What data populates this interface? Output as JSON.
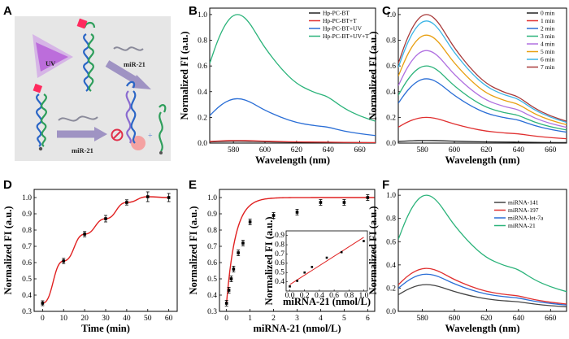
{
  "panels": {
    "A": {
      "label": "A",
      "texts": {
        "uv": "UV",
        "mir_top": "miR-21",
        "mir_bottom": "miR-21"
      },
      "colors": {
        "background": "#e6e6e6",
        "uv": "#b14fd6",
        "arrow": "#9f93c3",
        "lock": "#ff2a5e",
        "strand_green": "#2e9e5b",
        "strand_blue": "#2b66c6",
        "strand_purple": "#8a6bd0"
      }
    },
    "B": {
      "label": "B"
    },
    "C": {
      "label": "C"
    },
    "D": {
      "label": "D"
    },
    "E": {
      "label": "E"
    },
    "F": {
      "label": "F"
    }
  },
  "chart_data": [
    {
      "id": "B",
      "type": "line",
      "xlabel": "Wavelength (nm)",
      "ylabel": "Normalized FI (a.u.)",
      "xlim": [
        565,
        670
      ],
      "ylim": [
        0.0,
        1.05
      ],
      "xticks": [
        580,
        600,
        620,
        640,
        660
      ],
      "yticks": [
        0.0,
        0.2,
        0.4,
        0.6,
        0.8,
        1.0
      ],
      "ytick_labels": [
        "0.0",
        "0.2",
        "0.4",
        "0.6",
        "0.8",
        "1.0"
      ],
      "legend": "top-right",
      "x": [
        565,
        570,
        575,
        580,
        585,
        590,
        595,
        600,
        610,
        620,
        630,
        635,
        640,
        650,
        660,
        670
      ],
      "shape": [
        0.62,
        0.8,
        0.93,
        1.0,
        1.0,
        0.94,
        0.84,
        0.74,
        0.58,
        0.46,
        0.4,
        0.38,
        0.36,
        0.27,
        0.21,
        0.17
      ],
      "series": [
        {
          "name": "Hp-PC-BT",
          "color": "#222222",
          "peak": 0.015
        },
        {
          "name": "Hp-PC-BT+T",
          "color": "#e03030",
          "peak": 0.02
        },
        {
          "name": "Hp-PC-BT+UV",
          "color": "#2a6ed6",
          "peak": 0.345
        },
        {
          "name": "Hp-PC-BT+UV+T",
          "color": "#2bb37a",
          "peak": 1.0
        }
      ]
    },
    {
      "id": "C",
      "type": "line",
      "xlabel": "Wavelength (nm)",
      "ylabel": "Normalized FI (a.u.)",
      "xlim": [
        565,
        670
      ],
      "ylim": [
        0.0,
        1.05
      ],
      "xticks": [
        580,
        600,
        620,
        640,
        660
      ],
      "yticks": [
        0.0,
        0.2,
        0.4,
        0.6,
        0.8,
        1.0
      ],
      "ytick_labels": [
        "0.0",
        "0.2",
        "0.4",
        "0.6",
        "0.8",
        "1.0"
      ],
      "legend": "top-right",
      "x": [
        565,
        570,
        575,
        580,
        585,
        590,
        595,
        600,
        610,
        620,
        630,
        635,
        640,
        650,
        660,
        670
      ],
      "shape": [
        0.62,
        0.8,
        0.93,
        1.0,
        1.0,
        0.94,
        0.84,
        0.74,
        0.58,
        0.46,
        0.4,
        0.38,
        0.36,
        0.27,
        0.21,
        0.17
      ],
      "series": [
        {
          "name": "0 min",
          "color": "#222222",
          "peak": 0.02
        },
        {
          "name": "1 min",
          "color": "#e03030",
          "peak": 0.2
        },
        {
          "name": "2 min",
          "color": "#2a6ed6",
          "peak": 0.5
        },
        {
          "name": "3 min",
          "color": "#2bb37a",
          "peak": 0.6
        },
        {
          "name": "4 min",
          "color": "#b070e0",
          "peak": 0.72
        },
        {
          "name": "5 min",
          "color": "#e8a012",
          "peak": 0.84
        },
        {
          "name": "6 min",
          "color": "#3ab4e6",
          "peak": 0.95
        },
        {
          "name": "7 min",
          "color": "#a83a3a",
          "peak": 1.0
        }
      ]
    },
    {
      "id": "D",
      "type": "line",
      "xlabel": "Time (min)",
      "ylabel": "Normalized FI (a.u.)",
      "xlim": [
        -4,
        64
      ],
      "ylim": [
        0.3,
        1.05
      ],
      "xticks": [
        0,
        10,
        20,
        30,
        40,
        50,
        60
      ],
      "yticks": [
        0.3,
        0.4,
        0.5,
        0.6,
        0.7,
        0.8,
        0.9,
        1.0
      ],
      "ytick_labels": [
        "0.3",
        "0.4",
        "0.5",
        "0.6",
        "0.7",
        "0.8",
        "0.9",
        "1.0"
      ],
      "line_color": "#e02020",
      "points": [
        {
          "x": 0,
          "y": 0.35,
          "err": 0.005
        },
        {
          "x": 10,
          "y": 0.61,
          "err": 0.006
        },
        {
          "x": 20,
          "y": 0.775,
          "err": 0.006
        },
        {
          "x": 30,
          "y": 0.87,
          "err": 0.01
        },
        {
          "x": 40,
          "y": 0.97,
          "err": 0.006
        },
        {
          "x": 50,
          "y": 1.005,
          "err": 0.02
        },
        {
          "x": 60,
          "y": 1.0,
          "err": 0.015
        }
      ]
    },
    {
      "id": "E",
      "type": "scatter",
      "xlabel": "miRNA-21 (nmol/L)",
      "ylabel": "Normalized FI (a.u.)",
      "xlim": [
        -0.3,
        6.3
      ],
      "ylim": [
        0.3,
        1.05
      ],
      "xticks": [
        0,
        1,
        2,
        3,
        4,
        5,
        6
      ],
      "yticks": [
        0.3,
        0.4,
        0.5,
        0.6,
        0.7,
        0.8,
        0.9,
        1.0
      ],
      "ytick_labels": [
        "0.3",
        "0.4",
        "0.5",
        "0.6",
        "0.7",
        "0.8",
        "0.9",
        "1.0"
      ],
      "line_color": "#e02020",
      "points": [
        {
          "x": 0,
          "y": 0.35,
          "err": 0.005
        },
        {
          "x": 0.1,
          "y": 0.43,
          "err": 0.005
        },
        {
          "x": 0.2,
          "y": 0.5,
          "err": 0.005
        },
        {
          "x": 0.3,
          "y": 0.56,
          "err": 0.005
        },
        {
          "x": 0.5,
          "y": 0.66,
          "err": 0.005
        },
        {
          "x": 0.7,
          "y": 0.72,
          "err": 0.005
        },
        {
          "x": 1,
          "y": 0.85,
          "err": 0.01
        },
        {
          "x": 2,
          "y": 0.89,
          "err": 0.01
        },
        {
          "x": 3,
          "y": 0.91,
          "err": 0.01
        },
        {
          "x": 4,
          "y": 0.97,
          "err": 0.005
        },
        {
          "x": 5,
          "y": 0.97,
          "err": 0.005
        },
        {
          "x": 6,
          "y": 1.0,
          "err": 0.01
        }
      ],
      "fit": {
        "ymax": 1.0,
        "y0": 0.35,
        "k": 2.6
      },
      "inset": {
        "xlabel": "miRNA-21 (nmol/L)",
        "ylabel": "Normalized FI (a.u.)",
        "xlim": [
          -0.05,
          1.05
        ],
        "ylim": [
          0.3,
          0.95
        ],
        "xticks": [
          0.0,
          0.2,
          0.4,
          0.6,
          0.8,
          1.0
        ],
        "xtick_labels": [
          "0.0",
          "0.2",
          "0.4",
          "0.6",
          "0.8",
          "1.0"
        ],
        "yticks": [
          0.4,
          0.5,
          0.6,
          0.7,
          0.8,
          0.9
        ],
        "ytick_labels": [
          "0.4",
          "0.5",
          "0.6",
          "0.7",
          "0.8",
          "0.9"
        ],
        "points": [
          {
            "x": 0.0,
            "y": 0.35
          },
          {
            "x": 0.1,
            "y": 0.41
          },
          {
            "x": 0.2,
            "y": 0.5
          },
          {
            "x": 0.3,
            "y": 0.56
          },
          {
            "x": 0.5,
            "y": 0.66
          },
          {
            "x": 0.7,
            "y": 0.72
          },
          {
            "x": 1.0,
            "y": 0.84
          }
        ],
        "fit": [
          [
            0.0,
            0.37
          ],
          [
            1.0,
            0.88
          ]
        ]
      }
    },
    {
      "id": "F",
      "type": "line",
      "xlabel": "Wavelength (nm)",
      "ylabel": "Normalized FI (a.u.)",
      "xlim": [
        565,
        670
      ],
      "ylim": [
        0.0,
        1.05
      ],
      "xticks": [
        580,
        600,
        620,
        640,
        660
      ],
      "yticks": [
        0.0,
        0.2,
        0.4,
        0.6,
        0.8,
        1.0
      ],
      "ytick_labels": [
        "0.0",
        "0.2",
        "0.4",
        "0.6",
        "0.8",
        "1.0"
      ],
      "legend": "top-right",
      "x": [
        565,
        570,
        575,
        580,
        585,
        590,
        595,
        600,
        610,
        620,
        630,
        635,
        640,
        650,
        660,
        670
      ],
      "shape": [
        0.62,
        0.8,
        0.93,
        1.0,
        1.0,
        0.94,
        0.84,
        0.74,
        0.58,
        0.46,
        0.4,
        0.38,
        0.36,
        0.27,
        0.21,
        0.17
      ],
      "series": [
        {
          "name": "miRNA-141",
          "color": "#444444",
          "peak": 0.23
        },
        {
          "name": "miRNA-197",
          "color": "#e03030",
          "peak": 0.37
        },
        {
          "name": "miRNA-let-7a",
          "color": "#2a6ed6",
          "peak": 0.32
        },
        {
          "name": "miRNA-21",
          "color": "#2bb37a",
          "peak": 1.0
        }
      ]
    }
  ]
}
